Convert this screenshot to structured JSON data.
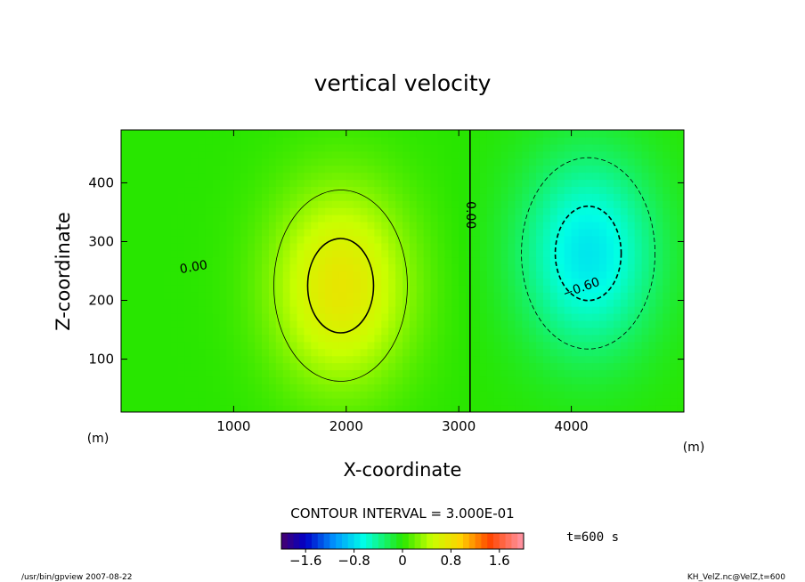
{
  "chart_data": {
    "type": "heatmap",
    "title": "vertical velocity",
    "xlabel": "X-coordinate",
    "ylabel": "Z-coordinate",
    "x_unit": "(m)",
    "y_unit": "(m)",
    "xlim": [
      0,
      5000
    ],
    "ylim": [
      10,
      490
    ],
    "x_ticks": [
      1000,
      2000,
      3000,
      4000
    ],
    "y_ticks": [
      100,
      200,
      300,
      400
    ],
    "contour_interval_text": "CONTOUR INTERVAL = 3.000E-01",
    "time_text": "t=600 s",
    "colorbar": {
      "min": -2.0,
      "max": 2.0,
      "tick_values": [
        -1.6,
        -0.8,
        0,
        0.8,
        1.6
      ],
      "tick_labels": [
        "−1.6",
        "−0.8",
        "0",
        "0.8",
        "1.6"
      ]
    },
    "extrema": [
      {
        "kind": "max",
        "x": 1950,
        "z": 225,
        "value": 0.75
      },
      {
        "kind": "min",
        "x": 4150,
        "z": 280,
        "value": -0.75
      }
    ],
    "contour_labels": [
      {
        "text": "0.00",
        "x": 650,
        "z": 250,
        "angle": -10
      },
      {
        "text": "0.00",
        "x": 3070,
        "z": 345,
        "angle": 90
      },
      {
        "text": "−0.60",
        "x": 4100,
        "z": 215,
        "angle": -20
      }
    ]
  },
  "footer": {
    "left": "/usr/bin/gpview  2007-08-22",
    "right": "KH_VelZ.nc@VelZ,t=600"
  }
}
